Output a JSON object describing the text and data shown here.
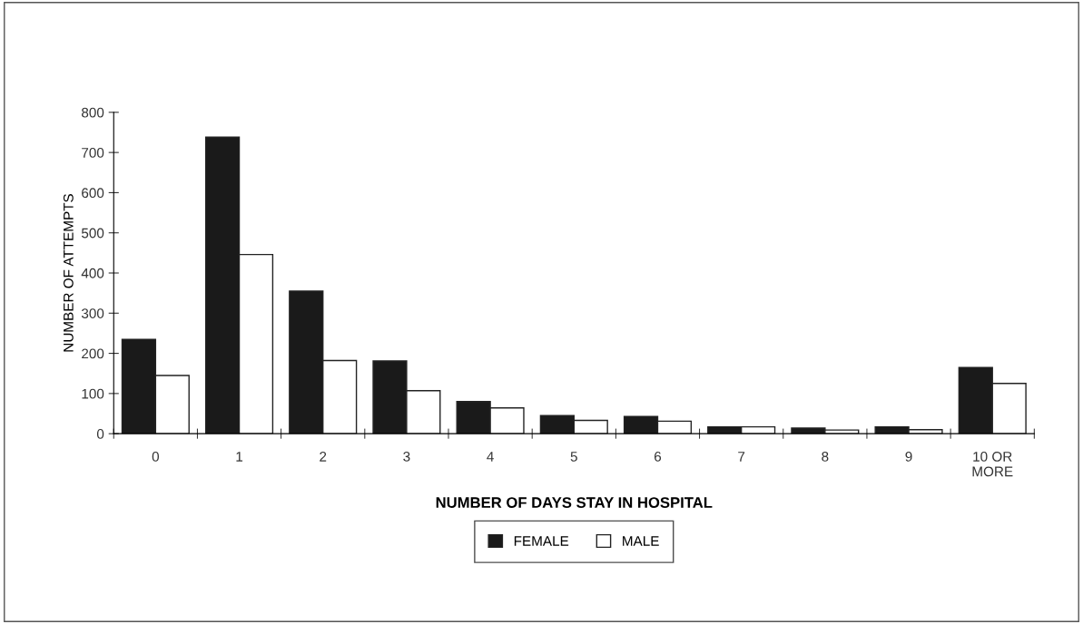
{
  "chart_data": {
    "type": "bar",
    "xlabel": "NUMBER OF DAYS STAY IN HOSPITAL",
    "ylabel": "NUMBER OF ATTEMPTS",
    "categories": [
      "0",
      "1",
      "2",
      "3",
      "4",
      "5",
      "6",
      "7",
      "8",
      "9",
      "10 OR\nMORE"
    ],
    "series": [
      {
        "name": "FEMALE",
        "color": "#1a1a1a",
        "values": [
          235,
          738,
          355,
          181,
          80,
          45,
          43,
          17,
          14,
          17,
          165
        ]
      },
      {
        "name": "MALE",
        "color": "#ffffff",
        "values": [
          145,
          446,
          182,
          107,
          64,
          33,
          31,
          17,
          9,
          10,
          125
        ]
      }
    ],
    "ylim": [
      0,
      800
    ],
    "yticks": [
      0,
      100,
      200,
      300,
      400,
      500,
      600,
      700,
      800
    ],
    "grid": false,
    "legend": "bottom"
  }
}
